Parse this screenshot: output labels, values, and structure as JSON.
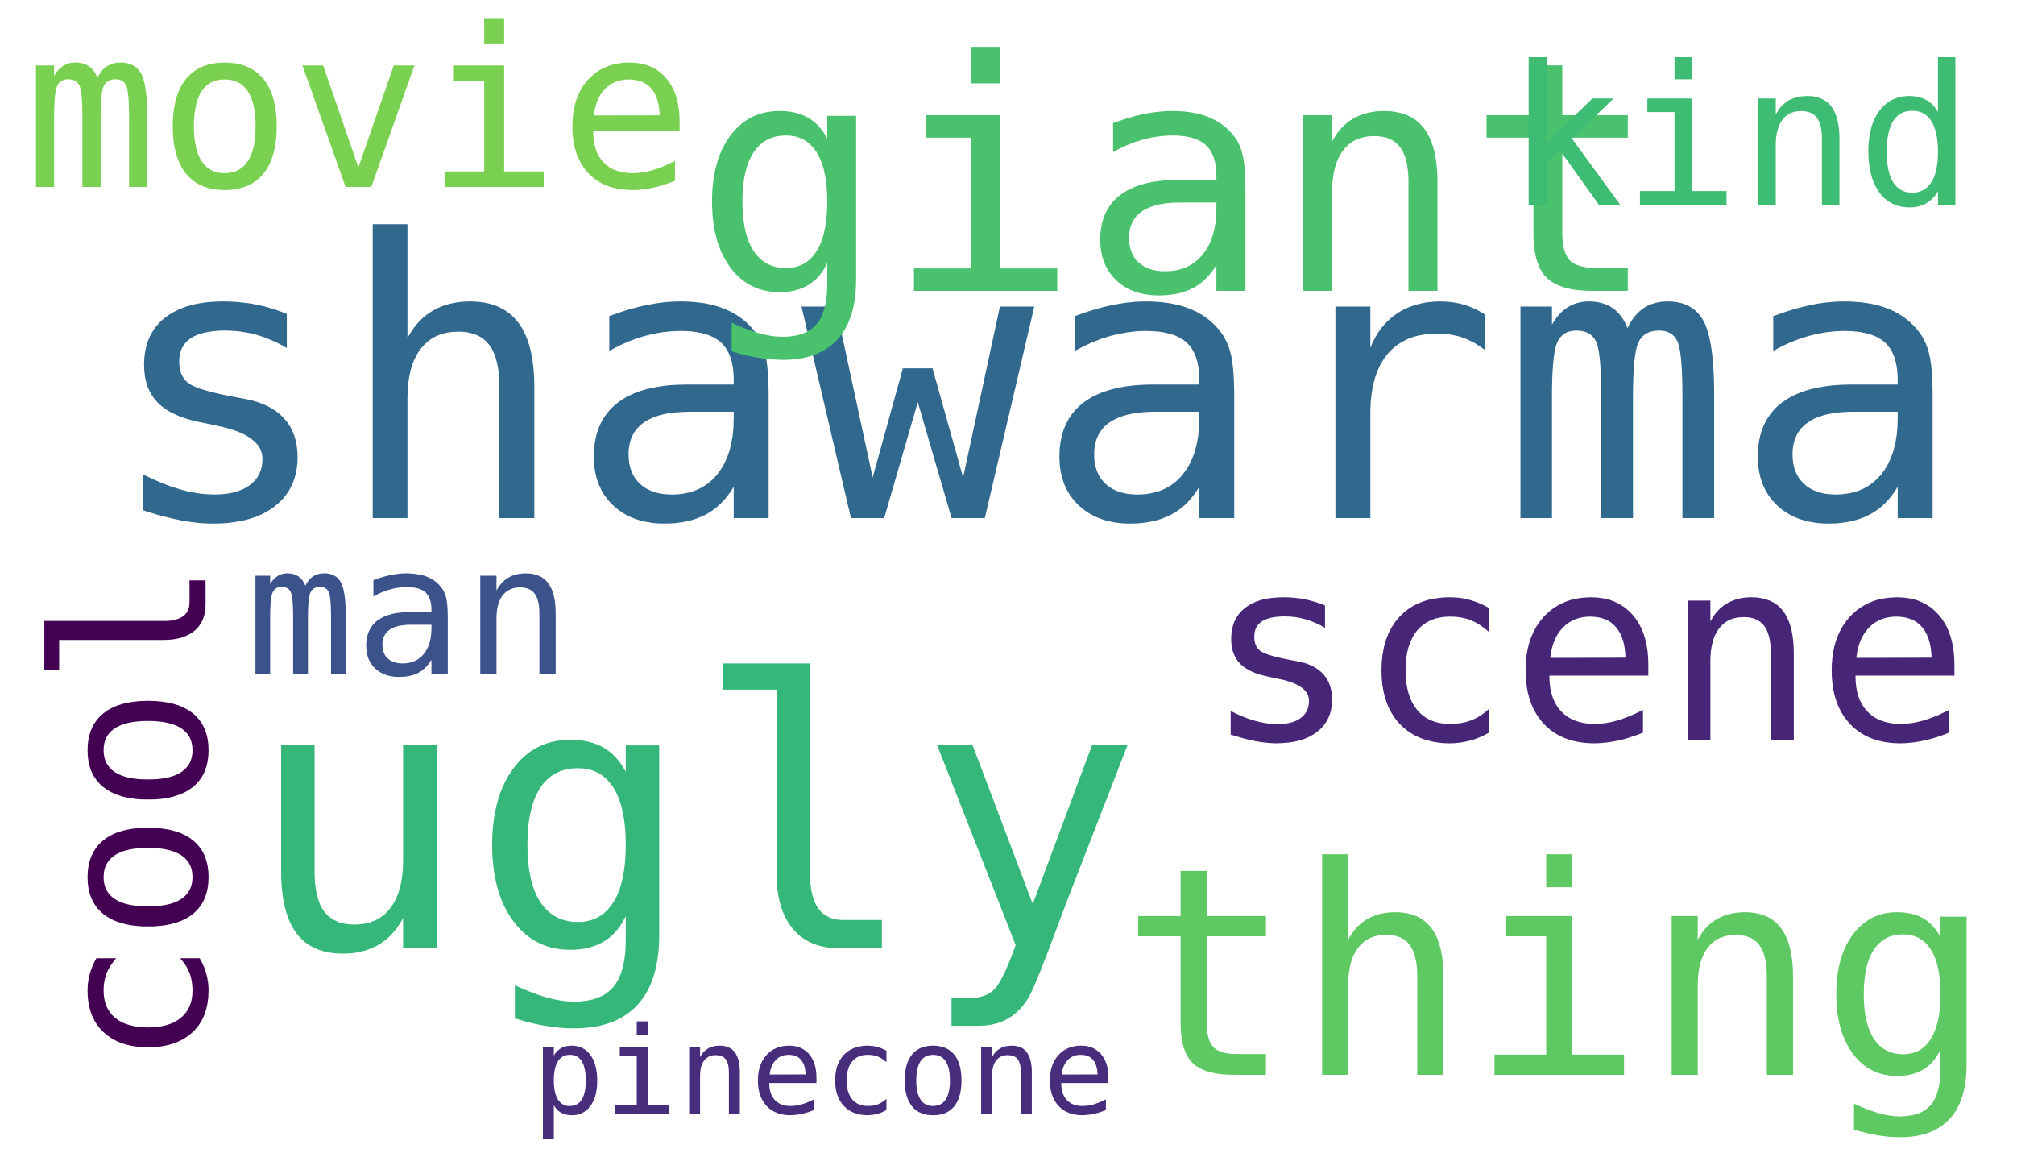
{
  "word_cloud": {
    "words": [
      {
        "text": "shawarma",
        "color": "#31688e"
      },
      {
        "text": "ugly",
        "color": "#35b779"
      },
      {
        "text": "thing",
        "color": "#5ec962"
      },
      {
        "text": "scene",
        "color": "#482677"
      },
      {
        "text": "giant",
        "color": "#4ac16d"
      },
      {
        "text": "movie",
        "color": "#7ad151"
      },
      {
        "text": "kind",
        "color": "#3fbc73"
      },
      {
        "text": "cool",
        "color": "#440154"
      },
      {
        "text": "man",
        "color": "#3b528b"
      },
      {
        "text": "pinecone",
        "color": "#472d7b"
      }
    ]
  }
}
